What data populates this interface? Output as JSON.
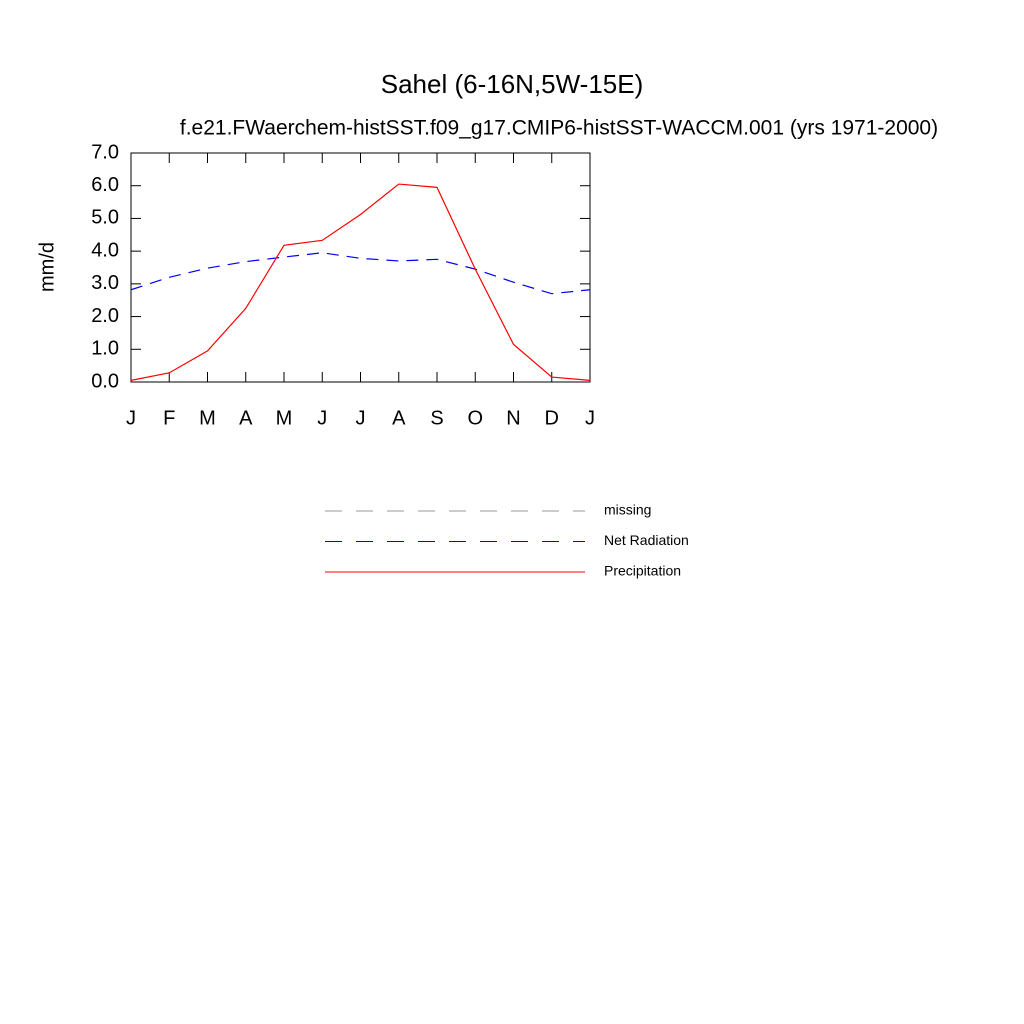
{
  "chart_data": {
    "type": "line",
    "title": "Sahel (6-16N,5W-15E)",
    "subtitle": "f.e21.FWaerchem-histSST.f09_g17.CMIP6-histSST-WACCM.001 (yrs 1971-2000)",
    "y_label": "mm/d",
    "categories": [
      "J",
      "F",
      "M",
      "A",
      "M",
      "J",
      "J",
      "A",
      "S",
      "O",
      "N",
      "D",
      "J"
    ],
    "ylim": [
      0,
      7
    ],
    "yticks": [
      {
        "value": 0,
        "label": "0.0"
      },
      {
        "value": 1,
        "label": "1.0"
      },
      {
        "value": 2,
        "label": "2.0"
      },
      {
        "value": 3,
        "label": "3.0"
      },
      {
        "value": 4,
        "label": "4.0"
      },
      {
        "value": 5,
        "label": "5.0"
      },
      {
        "value": 6,
        "label": "6.0"
      },
      {
        "value": 7,
        "label": "7.0"
      }
    ],
    "series": [
      {
        "name": "missing",
        "color": "#999999",
        "dash": true,
        "values": [
          null,
          null,
          null,
          null,
          null,
          null,
          null,
          null,
          null,
          null,
          null,
          null,
          null
        ]
      },
      {
        "name": "Net Radiation",
        "color": "#0000ff",
        "dash": true,
        "values": [
          2.82,
          3.2,
          3.48,
          3.68,
          3.82,
          3.95,
          3.78,
          3.7,
          3.75,
          3.45,
          3.05,
          2.7,
          2.82
        ]
      },
      {
        "name": "Precipitation",
        "color": "#ff0000",
        "dash": false,
        "values": [
          0.05,
          0.28,
          0.95,
          2.25,
          4.18,
          4.33,
          5.12,
          6.05,
          5.95,
          3.45,
          1.15,
          0.15,
          0.05
        ]
      }
    ]
  }
}
